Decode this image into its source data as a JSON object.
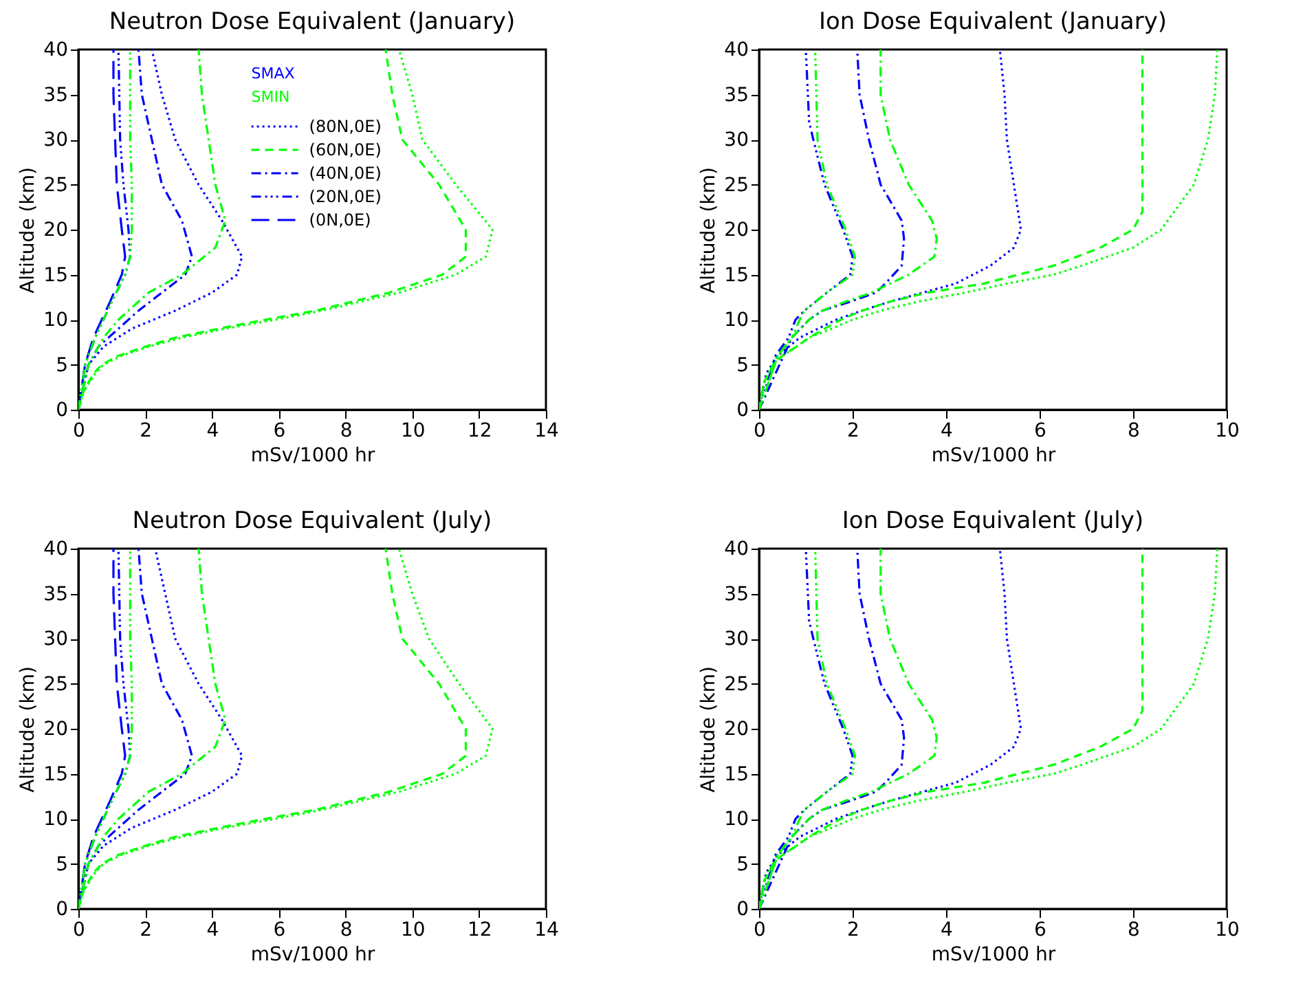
{
  "chart_data": [
    {
      "type": "line",
      "title": "Neutron Dose Equivalent (January)",
      "xlabel": "mSv/1000 hr",
      "ylabel": "Altitude (km)",
      "xlim": [
        0,
        14
      ],
      "xticks": [
        0,
        2,
        4,
        6,
        8,
        10,
        12,
        14
      ],
      "ylim": [
        0,
        40
      ],
      "yticks": [
        0,
        5,
        10,
        15,
        20,
        25,
        30,
        35,
        40
      ],
      "annotations": [
        "SMAX",
        "SMIN"
      ],
      "legend": "top right",
      "series": [
        {
          "name": "(80N,0E)",
          "color": "#0000ff",
          "line_style": "dotted",
          "x": [
            0,
            0.3,
            0.75,
            1.6,
            2.9,
            4.0,
            4.75,
            4.9,
            4.3,
            3.6,
            2.9,
            2.5,
            2.2
          ],
          "values": [
            0,
            5,
            7,
            9,
            11,
            13,
            15,
            17,
            21,
            25,
            30,
            35,
            40
          ]
        },
        {
          "name": "(40N,0E)",
          "color": "#0000ff",
          "line_style": "dashdot",
          "x": [
            0,
            0.3,
            0.6,
            1.2,
            1.8,
            2.5,
            3.2,
            3.4,
            3.1,
            2.5,
            2.2,
            1.9,
            1.8
          ],
          "values": [
            0,
            5,
            7,
            9,
            11,
            13,
            15,
            17,
            21,
            25,
            30,
            35,
            40
          ]
        },
        {
          "name": "(20N,0E)",
          "color": "#0000ff",
          "line_style": "dashdotdot",
          "x": [
            0,
            0.2,
            0.5,
            0.75,
            1.0,
            1.4,
            1.55,
            1.5,
            1.35,
            1.25,
            1.2
          ],
          "values": [
            0,
            5,
            8,
            10,
            12,
            15,
            17,
            20,
            25,
            30,
            40
          ]
        },
        {
          "name": "(0N,0E)",
          "color": "#0000ff",
          "line_style": "longdash",
          "x": [
            0,
            0.2,
            0.45,
            0.7,
            0.95,
            1.3,
            1.4,
            1.3,
            1.15,
            1.1,
            1.05,
            1.05
          ],
          "values": [
            0,
            5,
            8,
            10,
            12,
            15,
            17,
            20,
            25,
            30,
            35,
            40
          ]
        },
        {
          "color": "#00ff00",
          "line_style": "dotted",
          "x": [
            0,
            0.15,
            0.5,
            0.75,
            1.3,
            2.1,
            3.1,
            4.4,
            5.9,
            7.3,
            9.6,
            11.3,
            12.2,
            12.4,
            11.3,
            10.3,
            10.0,
            9.6
          ],
          "values": [
            0,
            2,
            4,
            5,
            6,
            7,
            8,
            9,
            10,
            11,
            13,
            15,
            17,
            20,
            25,
            30,
            35,
            40
          ]
        },
        {
          "name": "(60N,0E)",
          "color": "#00ff00",
          "line_style": "dashed",
          "x": [
            0,
            0.15,
            0.45,
            0.7,
            1.2,
            2.0,
            2.9,
            4.2,
            5.6,
            7.1,
            9.3,
            10.9,
            11.6,
            11.6,
            10.8,
            9.7,
            9.4,
            9.2
          ],
          "values": [
            0,
            2,
            4,
            5,
            6,
            7,
            8,
            9,
            10,
            11,
            13,
            15,
            17,
            20,
            25,
            30,
            35,
            40
          ]
        },
        {
          "color": "#00ff00",
          "line_style": "dashdot",
          "x": [
            0,
            0.3,
            0.75,
            1.2,
            2.1,
            3.1,
            4.1,
            4.4,
            4.1,
            3.9,
            3.7,
            3.6
          ],
          "values": [
            0,
            5,
            8,
            10,
            13,
            15,
            18,
            21,
            25,
            30,
            35,
            40
          ]
        },
        {
          "color": "#00ff00",
          "line_style": "dashdotdot",
          "x": [
            0,
            0.2,
            0.5,
            0.75,
            1.0,
            1.4,
            1.55,
            1.6,
            1.6,
            1.55,
            1.55
          ],
          "values": [
            0,
            5,
            8,
            10,
            12,
            15,
            17,
            20,
            25,
            30,
            40
          ]
        }
      ]
    },
    {
      "type": "line",
      "title": "Ion Dose Equivalent (January)",
      "xlabel": "mSv/1000 hr",
      "ylabel": "Altitude (km)",
      "xlim": [
        0,
        10
      ],
      "xticks": [
        0,
        2,
        4,
        6,
        8,
        10
      ],
      "ylim": [
        0,
        40
      ],
      "yticks": [
        0,
        5,
        10,
        15,
        20,
        25,
        30,
        35,
        40
      ],
      "series": [
        {
          "color": "#0000ff",
          "line_style": "dotted",
          "x": [
            0,
            0.15,
            0.4,
            0.87,
            1.26,
            1.65,
            2.2,
            2.8,
            3.5,
            4.2,
            4.95,
            5.45,
            5.6,
            5.45,
            5.3,
            5.25,
            5.15
          ],
          "values": [
            0,
            4,
            6,
            8,
            9,
            10,
            11,
            12,
            13,
            14,
            16,
            18,
            20,
            25,
            30,
            35,
            40
          ]
        },
        {
          "color": "#0000ff",
          "line_style": "dashdot",
          "x": [
            0,
            0.7,
            1.07,
            1.35,
            1.95,
            2.5,
            2.7,
            3.05,
            3.1,
            3.05,
            2.6,
            2.35,
            2.15,
            2.1
          ],
          "values": [
            0,
            8,
            10,
            11,
            12,
            13,
            14,
            16,
            19,
            21,
            25,
            30,
            35,
            40
          ]
        },
        {
          "color": "#0000ff",
          "line_style": "dashdotdot",
          "x": [
            0,
            0.35,
            0.63,
            0.78,
            0.97,
            1.45,
            1.95,
            2.0,
            1.8,
            1.4,
            1.16,
            1.07,
            1.0
          ],
          "values": [
            0,
            6,
            8,
            10,
            11,
            13,
            15,
            17,
            20,
            25,
            30,
            32,
            40
          ]
        },
        {
          "color": "#00ff00",
          "line_style": "dotted",
          "x": [
            0,
            0.1,
            0.3,
            0.5,
            0.8,
            1.07,
            1.55,
            2.0,
            2.6,
            3.4,
            4.4,
            5.3,
            6.3,
            6.9,
            8.0,
            8.6,
            9.3,
            9.6,
            9.75,
            9.8
          ],
          "values": [
            0,
            3,
            5,
            6,
            7,
            8,
            9,
            10,
            11,
            12,
            13,
            14,
            15,
            16,
            18,
            20,
            25,
            30,
            35,
            40
          ]
        },
        {
          "color": "#00ff00",
          "line_style": "dashed",
          "x": [
            0,
            0.1,
            0.3,
            0.5,
            0.8,
            1.07,
            1.4,
            1.75,
            2.2,
            2.8,
            3.6,
            4.8,
            6.3,
            7.3,
            8.0,
            8.2,
            8.2
          ],
          "values": [
            0,
            3,
            5,
            6,
            7,
            8,
            9,
            10,
            11,
            12,
            13,
            14,
            16,
            18,
            20,
            22,
            40
          ]
        },
        {
          "color": "#00ff00",
          "line_style": "dashdot",
          "x": [
            0,
            0.4,
            0.7,
            1.07,
            1.35,
            1.85,
            2.4,
            3.2,
            3.75,
            3.8,
            3.7,
            3.2,
            2.8,
            2.6,
            2.6
          ],
          "values": [
            0,
            6,
            8,
            10,
            11,
            12,
            13,
            15,
            17,
            19,
            21,
            25,
            30,
            35,
            40
          ]
        },
        {
          "color": "#00ff00",
          "line_style": "dashdotdot",
          "x": [
            0,
            0.4,
            0.7,
            0.87,
            0.97,
            1.45,
            2.0,
            2.05,
            1.85,
            1.45,
            1.25,
            1.2
          ],
          "values": [
            0,
            6,
            8,
            10,
            11,
            13,
            15,
            17,
            20,
            25,
            30,
            40
          ]
        }
      ]
    },
    {
      "type": "line",
      "title": "Neutron Dose Equivalent (July)",
      "xlabel": "mSv/1000 hr",
      "ylabel": "Altitude (km)",
      "xlim": [
        0,
        14
      ],
      "xticks": [
        0,
        2,
        4,
        6,
        8,
        10,
        12,
        14
      ],
      "ylim": [
        0,
        40
      ],
      "yticks": [
        0,
        5,
        10,
        15,
        20,
        25,
        30,
        35,
        40
      ],
      "series": [
        {
          "color": "#0000ff",
          "line_style": "dotted",
          "x": [
            0,
            0.3,
            0.75,
            1.6,
            2.9,
            4.0,
            4.75,
            4.9,
            4.3,
            3.6,
            2.9,
            2.6,
            2.3
          ],
          "values": [
            0,
            5,
            7,
            9,
            11,
            13,
            15,
            17,
            21,
            25,
            30,
            35,
            40
          ]
        },
        {
          "color": "#0000ff",
          "line_style": "dashdot",
          "x": [
            0,
            0.3,
            0.6,
            1.2,
            1.8,
            2.5,
            3.2,
            3.4,
            3.1,
            2.5,
            2.2,
            1.9,
            1.8
          ],
          "values": [
            0,
            5,
            7,
            9,
            11,
            13,
            15,
            17,
            21,
            25,
            30,
            35,
            40
          ]
        },
        {
          "color": "#0000ff",
          "line_style": "dashdotdot",
          "x": [
            0,
            0.2,
            0.5,
            0.75,
            1.0,
            1.4,
            1.55,
            1.5,
            1.35,
            1.25,
            1.2
          ],
          "values": [
            0,
            5,
            8,
            10,
            12,
            15,
            17,
            20,
            25,
            30,
            40
          ]
        },
        {
          "color": "#0000ff",
          "line_style": "longdash",
          "x": [
            0,
            0.2,
            0.45,
            0.7,
            0.95,
            1.3,
            1.4,
            1.3,
            1.15,
            1.1,
            1.05,
            1.05
          ],
          "values": [
            0,
            5,
            8,
            10,
            12,
            15,
            17,
            20,
            25,
            30,
            35,
            40
          ]
        },
        {
          "color": "#00ff00",
          "line_style": "dotted",
          "x": [
            0,
            0.15,
            0.5,
            0.75,
            1.3,
            2.1,
            3.1,
            4.4,
            5.9,
            7.3,
            9.6,
            11.3,
            12.2,
            12.4,
            11.4,
            10.5,
            10.0,
            9.6
          ],
          "values": [
            0,
            2,
            4,
            5,
            6,
            7,
            8,
            9,
            10,
            11,
            13,
            15,
            17,
            20,
            25,
            30,
            35,
            40
          ]
        },
        {
          "color": "#00ff00",
          "line_style": "dashed",
          "x": [
            0,
            0.15,
            0.45,
            0.7,
            1.2,
            2.0,
            2.9,
            4.2,
            5.6,
            7.1,
            9.3,
            10.9,
            11.6,
            11.6,
            10.8,
            9.7,
            9.4,
            9.2
          ],
          "values": [
            0,
            2,
            4,
            5,
            6,
            7,
            8,
            9,
            10,
            11,
            13,
            15,
            17,
            20,
            25,
            30,
            35,
            40
          ]
        },
        {
          "color": "#00ff00",
          "line_style": "dashdot",
          "x": [
            0,
            0.3,
            0.75,
            1.2,
            2.1,
            3.1,
            4.1,
            4.4,
            4.1,
            3.9,
            3.7,
            3.6
          ],
          "values": [
            0,
            5,
            8,
            10,
            13,
            15,
            18,
            21,
            25,
            30,
            35,
            40
          ]
        },
        {
          "color": "#00ff00",
          "line_style": "dashdotdot",
          "x": [
            0,
            0.2,
            0.5,
            0.75,
            1.0,
            1.4,
            1.55,
            1.6,
            1.6,
            1.55,
            1.55
          ],
          "values": [
            0,
            5,
            8,
            10,
            12,
            15,
            17,
            20,
            25,
            30,
            40
          ]
        }
      ]
    },
    {
      "type": "line",
      "title": "Ion Dose Equivalent (July)",
      "xlabel": "mSv/1000 hr",
      "ylabel": "Altitude (km)",
      "xlim": [
        0,
        10
      ],
      "xticks": [
        0,
        2,
        4,
        6,
        8,
        10
      ],
      "ylim": [
        0,
        40
      ],
      "yticks": [
        0,
        5,
        10,
        15,
        20,
        25,
        30,
        35,
        40
      ],
      "series": [
        {
          "color": "#0000ff",
          "line_style": "dotted",
          "x": [
            0,
            0.15,
            0.4,
            0.87,
            1.26,
            1.65,
            2.2,
            2.8,
            3.5,
            4.2,
            4.95,
            5.45,
            5.6,
            5.45,
            5.3,
            5.25,
            5.15
          ],
          "values": [
            0,
            4,
            6,
            8,
            9,
            10,
            11,
            12,
            13,
            14,
            16,
            18,
            20,
            25,
            30,
            35,
            40
          ]
        },
        {
          "color": "#0000ff",
          "line_style": "dashdot",
          "x": [
            0,
            0.7,
            1.07,
            1.35,
            1.95,
            2.5,
            2.7,
            3.05,
            3.1,
            3.05,
            2.6,
            2.35,
            2.15,
            2.1
          ],
          "values": [
            0,
            8,
            10,
            11,
            12,
            13,
            14,
            16,
            19,
            21,
            25,
            30,
            35,
            40
          ]
        },
        {
          "color": "#0000ff",
          "line_style": "dashdotdot",
          "x": [
            0,
            0.35,
            0.63,
            0.78,
            0.97,
            1.45,
            1.95,
            2.0,
            1.8,
            1.4,
            1.16,
            1.07,
            1.0
          ],
          "values": [
            0,
            6,
            8,
            10,
            11,
            13,
            15,
            17,
            20,
            25,
            30,
            32,
            40
          ]
        },
        {
          "color": "#00ff00",
          "line_style": "dotted",
          "x": [
            0,
            0.1,
            0.3,
            0.5,
            0.8,
            1.07,
            1.55,
            2.0,
            2.6,
            3.4,
            4.4,
            5.3,
            6.3,
            6.9,
            8.0,
            8.6,
            9.3,
            9.6,
            9.75,
            9.8
          ],
          "values": [
            0,
            3,
            5,
            6,
            7,
            8,
            9,
            10,
            11,
            12,
            13,
            14,
            15,
            16,
            18,
            20,
            25,
            30,
            35,
            40
          ]
        },
        {
          "color": "#00ff00",
          "line_style": "dashed",
          "x": [
            0,
            0.1,
            0.3,
            0.5,
            0.8,
            1.07,
            1.4,
            1.75,
            2.2,
            2.8,
            3.6,
            4.8,
            6.3,
            7.3,
            8.0,
            8.2,
            8.2
          ],
          "values": [
            0,
            3,
            5,
            6,
            7,
            8,
            9,
            10,
            11,
            12,
            13,
            14,
            16,
            18,
            20,
            22,
            40
          ]
        },
        {
          "color": "#00ff00",
          "line_style": "dashdot",
          "x": [
            0,
            0.4,
            0.7,
            1.07,
            1.35,
            1.85,
            2.4,
            3.2,
            3.75,
            3.8,
            3.7,
            3.2,
            2.8,
            2.6,
            2.6
          ],
          "values": [
            0,
            6,
            8,
            10,
            11,
            12,
            13,
            15,
            17,
            19,
            21,
            25,
            30,
            35,
            40
          ]
        },
        {
          "color": "#00ff00",
          "line_style": "dashdotdot",
          "x": [
            0,
            0.4,
            0.7,
            0.87,
            0.97,
            1.45,
            2.0,
            2.05,
            1.85,
            1.45,
            1.25,
            1.2
          ],
          "values": [
            0,
            6,
            8,
            10,
            11,
            13,
            15,
            17,
            20,
            25,
            30,
            40
          ]
        }
      ]
    }
  ]
}
